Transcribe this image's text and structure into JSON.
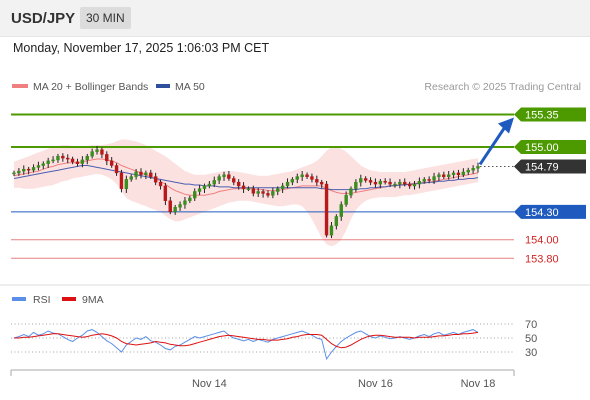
{
  "header": {
    "pair": "USD/JPY",
    "timeframe": "30 MIN"
  },
  "timestamp": "Monday, November 17, 2025 1:06:03 PM CET",
  "legend": {
    "ma20_bb": "MA 20 + Bollinger Bands",
    "ma50": "MA 50",
    "credit": "Research © 2025 Trading Central"
  },
  "colors": {
    "green": "#4c9a00",
    "blue": "#1f5bbf",
    "red": "#e06060",
    "dark": "#333333",
    "band": "#fbd7d7",
    "ma20": "#f08080",
    "ma50": "#4a5fb0",
    "rsi": "#5b8ee6",
    "rsi_ma": "#dd1111",
    "candle_up": "#3a8d1f",
    "candle_down": "#b81818"
  },
  "levels": [
    {
      "value": 155.35,
      "label": "155.35",
      "kind": "resistance",
      "color": "#4c9a00"
    },
    {
      "value": 155.0,
      "label": "155.00",
      "kind": "resistance",
      "color": "#4c9a00"
    },
    {
      "value": 154.79,
      "label": "154.79",
      "kind": "last",
      "color": "#333333"
    },
    {
      "value": 154.3,
      "label": "154.30",
      "kind": "pivot",
      "color": "#1f5bbf"
    },
    {
      "value": 154.0,
      "label": "154.00",
      "kind": "support",
      "color": "#e06060"
    },
    {
      "value": 153.8,
      "label": "153.80",
      "kind": "support",
      "color": "#e06060"
    }
  ],
  "rsi_panel": {
    "legend_rsi": "RSI",
    "legend_ma": "9MA",
    "ticks": [
      {
        "value": 70,
        "label": "70"
      },
      {
        "value": 50,
        "label": "50"
      },
      {
        "value": 30,
        "label": "30"
      }
    ]
  },
  "chart_data": {
    "type": "candlestick",
    "x_ticks": [
      {
        "index": 40,
        "label": "Nov 14"
      },
      {
        "index": 74,
        "label": "Nov 16"
      },
      {
        "index": 95,
        "label": "Nov 18"
      }
    ],
    "price_range": [
      153.62,
      155.56
    ],
    "close": [
      154.72,
      154.74,
      154.76,
      154.75,
      154.78,
      154.8,
      154.82,
      154.85,
      154.86,
      154.9,
      154.88,
      154.87,
      154.84,
      154.82,
      154.86,
      154.9,
      154.95,
      154.97,
      154.92,
      154.85,
      154.8,
      154.72,
      154.55,
      154.65,
      154.68,
      154.73,
      154.7,
      154.72,
      154.68,
      154.62,
      154.58,
      154.42,
      154.3,
      154.35,
      154.38,
      154.42,
      154.45,
      154.52,
      154.55,
      154.58,
      154.6,
      154.64,
      154.68,
      154.7,
      154.66,
      154.62,
      154.58,
      154.55,
      154.55,
      154.5,
      154.52,
      154.5,
      154.48,
      154.52,
      154.55,
      154.58,
      154.62,
      154.65,
      154.68,
      154.7,
      154.68,
      154.65,
      154.62,
      154.6,
      154.05,
      154.15,
      154.25,
      154.38,
      154.48,
      154.55,
      154.62,
      154.66,
      154.64,
      154.62,
      154.6,
      154.63,
      154.62,
      154.6,
      154.6,
      154.62,
      154.6,
      154.58,
      154.6,
      154.63,
      154.65,
      154.64,
      154.68,
      154.7,
      154.68,
      154.7,
      154.72,
      154.7,
      154.73,
      154.75,
      154.77,
      154.79
    ],
    "ma20": [
      154.69,
      154.7,
      154.71,
      154.72,
      154.73,
      154.74,
      154.76,
      154.78,
      154.79,
      154.81,
      154.82,
      154.83,
      154.83,
      154.83,
      154.84,
      154.85,
      154.86,
      154.87,
      154.87,
      154.86,
      154.85,
      154.83,
      154.8,
      154.78,
      154.76,
      154.74,
      154.72,
      154.7,
      154.68,
      154.66,
      154.63,
      154.6,
      154.56,
      154.53,
      154.51,
      154.49,
      154.48,
      154.48,
      154.48,
      154.48,
      154.49,
      154.5,
      154.52,
      154.53,
      154.54,
      154.55,
      154.55,
      154.55,
      154.55,
      154.55,
      154.54,
      154.54,
      154.53,
      154.53,
      154.53,
      154.54,
      154.55,
      154.56,
      154.57,
      154.58,
      154.58,
      154.58,
      154.58,
      154.58,
      154.55,
      154.53,
      154.51,
      154.5,
      154.5,
      154.5,
      154.51,
      154.52,
      154.53,
      154.54,
      154.55,
      154.56,
      154.57,
      154.58,
      154.59,
      154.59,
      154.6,
      154.6,
      154.61,
      154.61,
      154.62,
      154.62,
      154.63,
      154.64,
      154.65,
      154.66,
      154.67,
      154.68,
      154.69,
      154.7,
      154.71,
      154.72
    ],
    "band_upper": [
      154.84,
      154.86,
      154.88,
      154.9,
      154.92,
      154.94,
      154.96,
      154.98,
      155.0,
      155.01,
      155.02,
      155.02,
      155.01,
      155.0,
      155.0,
      155.01,
      155.02,
      155.02,
      155.02,
      155.03,
      155.04,
      155.06,
      155.08,
      155.08,
      155.07,
      155.06,
      155.04,
      155.02,
      154.99,
      154.96,
      154.93,
      154.9,
      154.86,
      154.82,
      154.78,
      154.74,
      154.72,
      154.7,
      154.7,
      154.7,
      154.71,
      154.72,
      154.73,
      154.74,
      154.74,
      154.74,
      154.73,
      154.72,
      154.71,
      154.7,
      154.69,
      154.69,
      154.69,
      154.7,
      154.71,
      154.72,
      154.73,
      154.74,
      154.76,
      154.78,
      154.8,
      154.82,
      154.85,
      154.9,
      154.96,
      155.0,
      155.0,
      154.98,
      154.95,
      154.9,
      154.85,
      154.8,
      154.77,
      154.75,
      154.74,
      154.73,
      154.73,
      154.73,
      154.73,
      154.73,
      154.73,
      154.74,
      154.75,
      154.76,
      154.77,
      154.78,
      154.79,
      154.8,
      154.81,
      154.82,
      154.83,
      154.84,
      154.85,
      154.86,
      154.87,
      154.88
    ],
    "band_lower": [
      154.56,
      154.56,
      154.55,
      154.55,
      154.55,
      154.56,
      154.57,
      154.58,
      154.59,
      154.61,
      154.63,
      154.64,
      154.66,
      154.67,
      154.68,
      154.69,
      154.7,
      154.71,
      154.7,
      154.68,
      154.65,
      154.6,
      154.52,
      154.45,
      154.42,
      154.4,
      154.38,
      154.36,
      154.34,
      154.32,
      154.3,
      154.26,
      154.22,
      154.2,
      154.2,
      154.22,
      154.24,
      154.26,
      154.28,
      154.3,
      154.32,
      154.34,
      154.36,
      154.38,
      154.4,
      154.41,
      154.42,
      154.42,
      154.42,
      154.41,
      154.4,
      154.39,
      154.38,
      154.37,
      154.36,
      154.36,
      154.37,
      154.38,
      154.38,
      154.36,
      154.3,
      154.22,
      154.12,
      154.02,
      153.95,
      153.93,
      153.95,
      154.0,
      154.1,
      154.22,
      154.32,
      154.38,
      154.42,
      154.44,
      154.45,
      154.46,
      154.46,
      154.46,
      154.46,
      154.47,
      154.48,
      154.48,
      154.49,
      154.5,
      154.51,
      154.52,
      154.53,
      154.54,
      154.55,
      154.56,
      154.57,
      154.58,
      154.59,
      154.6,
      154.61,
      154.62
    ],
    "ma50": [
      154.66,
      154.67,
      154.68,
      154.69,
      154.7,
      154.71,
      154.72,
      154.73,
      154.74,
      154.75,
      154.76,
      154.77,
      154.78,
      154.79,
      154.8,
      154.8,
      154.79,
      154.78,
      154.77,
      154.76,
      154.75,
      154.74,
      154.73,
      154.72,
      154.71,
      154.7,
      154.69,
      154.68,
      154.67,
      154.66,
      154.65,
      154.64,
      154.63,
      154.62,
      154.61,
      154.6,
      154.6,
      154.59,
      154.59,
      154.58,
      154.58,
      154.58,
      154.57,
      154.57,
      154.57,
      154.56,
      154.56,
      154.56,
      154.56,
      154.56,
      154.56,
      154.56,
      154.56,
      154.56,
      154.56,
      154.56,
      154.56,
      154.56,
      154.56,
      154.56,
      154.56,
      154.56,
      154.56,
      154.55,
      154.55,
      154.54,
      154.54,
      154.54,
      154.54,
      154.54,
      154.54,
      154.55,
      154.55,
      154.56,
      154.56,
      154.57,
      154.57,
      154.58,
      154.58,
      154.59,
      154.59,
      154.6,
      154.6,
      154.61,
      154.61,
      154.62,
      154.62,
      154.63,
      154.63,
      154.64,
      154.64,
      154.65,
      154.65,
      154.66,
      154.66,
      154.67
    ],
    "rsi": [
      50,
      52,
      55,
      52,
      58,
      54,
      56,
      60,
      57,
      56,
      52,
      48,
      45,
      50,
      54,
      60,
      62,
      58,
      52,
      46,
      42,
      36,
      30,
      40,
      45,
      50,
      48,
      52,
      46,
      44,
      40,
      35,
      33,
      38,
      40,
      44,
      48,
      52,
      50,
      52,
      54,
      56,
      58,
      60,
      54,
      50,
      48,
      46,
      48,
      45,
      48,
      46,
      44,
      48,
      50,
      52,
      54,
      56,
      58,
      60,
      57,
      54,
      50,
      48,
      20,
      30,
      38,
      45,
      50,
      54,
      58,
      60,
      56,
      52,
      50,
      53,
      51,
      49,
      50,
      52,
      50,
      48,
      50,
      53,
      55,
      52,
      56,
      58,
      54,
      56,
      58,
      55,
      58,
      60,
      62,
      58
    ],
    "rsi_ma": [
      50,
      50,
      51,
      51,
      52,
      53,
      54,
      55,
      56,
      56,
      55,
      54,
      53,
      52,
      51,
      52,
      54,
      55,
      56,
      55,
      53,
      50,
      45,
      42,
      41,
      40,
      41,
      42,
      43,
      45,
      44,
      43,
      41,
      40,
      39,
      39,
      40,
      42,
      44,
      46,
      48,
      50,
      52,
      53,
      54,
      53,
      52,
      51,
      50,
      49,
      48,
      48,
      47,
      47,
      47,
      48,
      49,
      51,
      52,
      54,
      55,
      55,
      55,
      54,
      48,
      42,
      38,
      36,
      37,
      40,
      44,
      48,
      51,
      53,
      54,
      54,
      53,
      52,
      51,
      51,
      51,
      51,
      50,
      51,
      51,
      51,
      52,
      53,
      53,
      54,
      55,
      55,
      56,
      56,
      57,
      58
    ]
  }
}
